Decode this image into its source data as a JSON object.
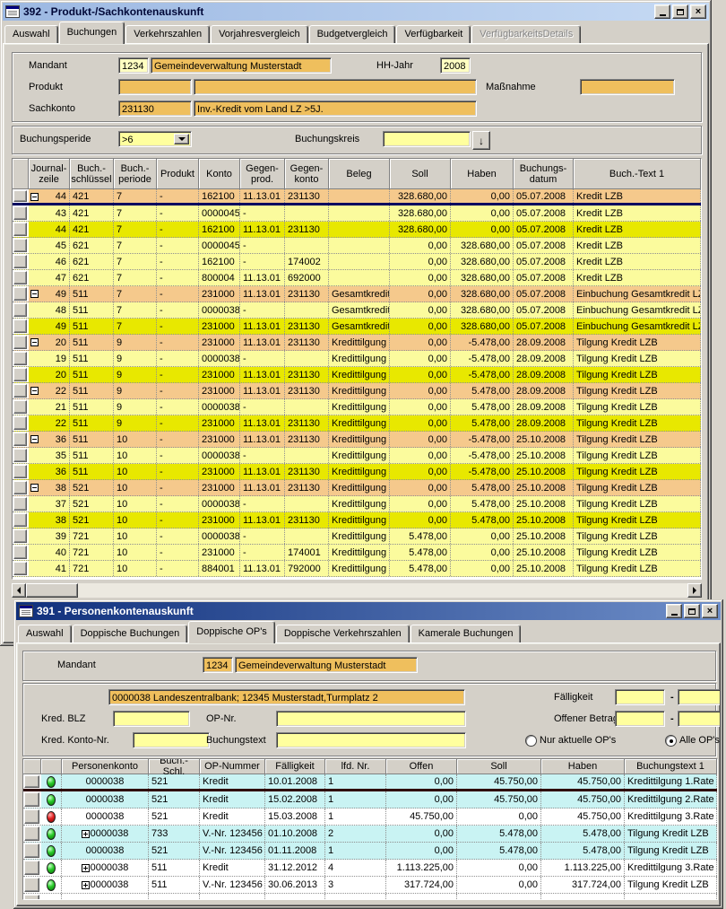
{
  "win392": {
    "title": "392 - Produkt-/Sachkontenauskunft",
    "tabs": [
      "Auswahl",
      "Buchungen",
      "Verkehrszahlen",
      "Vorjahresvergleich",
      "Budgetvergleich",
      "Verfügbarkeit",
      "VerfügbarkeitsDetails"
    ],
    "active_tab": "Buchungen",
    "disabled_tabs": [
      "VerfügbarkeitsDetails"
    ],
    "window_buttons": [
      "minimize",
      "maximize",
      "close"
    ],
    "form": {
      "mandant_label": "Mandant",
      "mandant": "1234",
      "mandant_name": "Gemeindeverwaltung Musterstadt",
      "hhjahr_label": "HH-Jahr",
      "hhjahr": "2008",
      "produkt_label": "Produkt",
      "produkt": "",
      "produkt_name": "",
      "massnahme_label": "Maßnahme",
      "massnahme": "",
      "sachkonto_label": "Sachkonto",
      "sachkonto": "231130",
      "sachkonto_name": "Inv.-Kredit vom Land LZ >5J.",
      "periode_label": "Buchungsperide",
      "periode": ">6",
      "kreis_label": "Buchungskreis",
      "kreis": ""
    },
    "grid": {
      "headers": [
        "Journal-\nzeile",
        "Buch.-\nschlüssel",
        "Buch.-\nperiode",
        "Produkt",
        "Konto",
        "Gegen-\nprod.",
        "Gegen-\nkonto",
        "Beleg",
        "Soll",
        "Haben",
        "Buchungs-\ndatum",
        "Buch.-Text 1"
      ],
      "rows": [
        {
          "i": "-",
          "s": "o",
          "sep": 1,
          "c": [
            "44",
            "421",
            "7",
            "-",
            "162100",
            "11.13.01",
            "231130",
            "",
            "328.680,00",
            "0,00",
            "05.07.2008",
            "Kredit LZB"
          ]
        },
        {
          "i": "",
          "s": "y",
          "c": [
            "43",
            "421",
            "7",
            "-",
            "0000045",
            "-",
            "",
            "",
            "328.680,00",
            "0,00",
            "05.07.2008",
            "Kredit LZB"
          ]
        },
        {
          "i": "",
          "s": "sel",
          "c": [
            "44",
            "421",
            "7",
            "-",
            "162100",
            "11.13.01",
            "231130",
            "",
            "328.680,00",
            "0,00",
            "05.07.2008",
            "Kredit LZB"
          ]
        },
        {
          "i": "",
          "s": "y",
          "c": [
            "45",
            "621",
            "7",
            "-",
            "0000045",
            "-",
            "",
            "",
            "0,00",
            "328.680,00",
            "05.07.2008",
            "Kredit LZB"
          ]
        },
        {
          "i": "",
          "s": "y",
          "c": [
            "46",
            "621",
            "7",
            "-",
            "162100",
            "-",
            "174002",
            "",
            "0,00",
            "328.680,00",
            "05.07.2008",
            "Kredit LZB"
          ]
        },
        {
          "i": "",
          "s": "y",
          "c": [
            "47",
            "621",
            "7",
            "-",
            "800004",
            "11.13.01",
            "692000",
            "",
            "0,00",
            "328.680,00",
            "05.07.2008",
            "Kredit LZB"
          ]
        },
        {
          "i": "-",
          "s": "o",
          "c": [
            "49",
            "511",
            "7",
            "-",
            "231000",
            "11.13.01",
            "231130",
            "Gesamtkredit",
            "0,00",
            "328.680,00",
            "05.07.2008",
            "Einbuchung Gesamtkredit LZB"
          ]
        },
        {
          "i": "",
          "s": "y",
          "c": [
            "48",
            "511",
            "7",
            "-",
            "0000038",
            "-",
            "",
            "Gesamtkredit",
            "0,00",
            "328.680,00",
            "05.07.2008",
            "Einbuchung Gesamtkredit LZB"
          ]
        },
        {
          "i": "",
          "s": "sel",
          "c": [
            "49",
            "511",
            "7",
            "-",
            "231000",
            "11.13.01",
            "231130",
            "Gesamtkredit",
            "0,00",
            "328.680,00",
            "05.07.2008",
            "Einbuchung Gesamtkredit LZB"
          ]
        },
        {
          "i": "-",
          "s": "o",
          "c": [
            "20",
            "511",
            "9",
            "-",
            "231000",
            "11.13.01",
            "231130",
            "Kredittilgung",
            "0,00",
            "-5.478,00",
            "28.09.2008",
            "Tilgung Kredit LZB"
          ]
        },
        {
          "i": "",
          "s": "y",
          "c": [
            "19",
            "511",
            "9",
            "-",
            "0000038",
            "-",
            "",
            "Kredittilgung",
            "0,00",
            "-5.478,00",
            "28.09.2008",
            "Tilgung Kredit LZB"
          ]
        },
        {
          "i": "",
          "s": "sel",
          "c": [
            "20",
            "511",
            "9",
            "-",
            "231000",
            "11.13.01",
            "231130",
            "Kredittilgung",
            "0,00",
            "-5.478,00",
            "28.09.2008",
            "Tilgung Kredit LZB"
          ]
        },
        {
          "i": "-",
          "s": "o",
          "c": [
            "22",
            "511",
            "9",
            "-",
            "231000",
            "11.13.01",
            "231130",
            "Kredittilgung",
            "0,00",
            "5.478,00",
            "28.09.2008",
            "Tilgung Kredit LZB"
          ]
        },
        {
          "i": "",
          "s": "y",
          "c": [
            "21",
            "511",
            "9",
            "-",
            "0000038",
            "-",
            "",
            "Kredittilgung",
            "0,00",
            "5.478,00",
            "28.09.2008",
            "Tilgung Kredit LZB"
          ]
        },
        {
          "i": "",
          "s": "sel",
          "c": [
            "22",
            "511",
            "9",
            "-",
            "231000",
            "11.13.01",
            "231130",
            "Kredittilgung",
            "0,00",
            "5.478,00",
            "28.09.2008",
            "Tilgung Kredit LZB"
          ]
        },
        {
          "i": "-",
          "s": "o",
          "c": [
            "36",
            "511",
            "10",
            "-",
            "231000",
            "11.13.01",
            "231130",
            "Kredittilgung",
            "0,00",
            "-5.478,00",
            "25.10.2008",
            "Tilgung Kredit LZB"
          ]
        },
        {
          "i": "",
          "s": "y",
          "c": [
            "35",
            "511",
            "10",
            "-",
            "0000038",
            "-",
            "",
            "Kredittilgung",
            "0,00",
            "-5.478,00",
            "25.10.2008",
            "Tilgung Kredit LZB"
          ]
        },
        {
          "i": "",
          "s": "sel",
          "c": [
            "36",
            "511",
            "10",
            "-",
            "231000",
            "11.13.01",
            "231130",
            "Kredittilgung",
            "0,00",
            "-5.478,00",
            "25.10.2008",
            "Tilgung Kredit LZB"
          ]
        },
        {
          "i": "-",
          "s": "o",
          "c": [
            "38",
            "521",
            "10",
            "-",
            "231000",
            "11.13.01",
            "231130",
            "Kredittilgung",
            "0,00",
            "5.478,00",
            "25.10.2008",
            "Tilgung Kredit LZB"
          ]
        },
        {
          "i": "",
          "s": "y",
          "c": [
            "37",
            "521",
            "10",
            "-",
            "0000038",
            "-",
            "",
            "Kredittilgung",
            "0,00",
            "5.478,00",
            "25.10.2008",
            "Tilgung Kredit LZB"
          ]
        },
        {
          "i": "",
          "s": "sel",
          "c": [
            "38",
            "521",
            "10",
            "-",
            "231000",
            "11.13.01",
            "231130",
            "Kredittilgung",
            "0,00",
            "5.478,00",
            "25.10.2008",
            "Tilgung Kredit LZB"
          ]
        },
        {
          "i": "",
          "s": "y",
          "c": [
            "39",
            "721",
            "10",
            "-",
            "0000038",
            "-",
            "",
            "Kredittilgung",
            "5.478,00",
            "0,00",
            "25.10.2008",
            "Tilgung Kredit LZB"
          ]
        },
        {
          "i": "",
          "s": "y",
          "c": [
            "40",
            "721",
            "10",
            "-",
            "231000",
            "-",
            "174001",
            "Kredittilgung",
            "5.478,00",
            "0,00",
            "25.10.2008",
            "Tilgung Kredit LZB"
          ]
        },
        {
          "i": "",
          "s": "y",
          "c": [
            "41",
            "721",
            "10",
            "-",
            "884001",
            "11.13.01",
            "792000",
            "Kredittilgung",
            "5.478,00",
            "0,00",
            "25.10.2008",
            "Tilgung Kredit LZB"
          ]
        }
      ]
    }
  },
  "win391": {
    "title": "391 - Personenkontenauskunft",
    "tabs": [
      "Auswahl",
      "Doppische Buchungen",
      "Doppische OP's",
      "Doppische Verkehrszahlen",
      "Kamerale Buchungen"
    ],
    "active_tab": "Doppische OP's",
    "disabled_tabs": [],
    "window_buttons": [
      "minimize",
      "maximize",
      "close"
    ],
    "form": {
      "mandant_label": "Mandant",
      "mandant": "1234",
      "mandant_name": "Gemeindeverwaltung Musterstadt",
      "kreditor": "0000038 Landeszentralbank; 12345 Musterstadt,Turmplatz 2",
      "blz_label": "Kred. BLZ",
      "blz": "",
      "kontonr_label": "Kred. Konto-Nr.",
      "kontonr": "",
      "opnr_label": "OP-Nr.",
      "opnr": "",
      "buchungstext_label": "Buchungstext",
      "buchungstext": "",
      "faelligkeit_label": "Fälligkeit",
      "faelligkeit_von": "",
      "faelligkeit_bis": "",
      "offen_label": "Offener Betrag",
      "offen_von": "",
      "offen_bis": "",
      "range_dash": "-",
      "radio_aktuelle": "Nur aktuelle OP's",
      "radio_alle": "Alle OP's",
      "radio_selected": "Alle OP's"
    },
    "grid": {
      "headers": [
        "Personenkonto",
        "Buch.-Schl.",
        "OP-Nummer",
        "Fälligkeit",
        "lfd. Nr.",
        "Offen",
        "Soll",
        "Haben",
        "Buchungstext 1"
      ],
      "rows": [
        {
          "light": "g",
          "i": "",
          "s": "c",
          "sep": 1,
          "c": [
            "0000038",
            "521",
            "Kredit",
            "10.01.2008",
            "1",
            "0,00",
            "45.750,00",
            "45.750,00",
            "Kredittilgung 1.Rate"
          ]
        },
        {
          "light": "g",
          "i": "",
          "s": "c",
          "c": [
            "0000038",
            "521",
            "Kredit",
            "15.02.2008",
            "1",
            "0,00",
            "45.750,00",
            "45.750,00",
            "Kredittilgung 2.Rate"
          ]
        },
        {
          "light": "r",
          "i": "",
          "s": "w",
          "c": [
            "0000038",
            "521",
            "Kredit",
            "15.03.2008",
            "1",
            "45.750,00",
            "0,00",
            "45.750,00",
            "Kredittilgung 3.Rate"
          ]
        },
        {
          "light": "g",
          "i": "+",
          "s": "c",
          "c": [
            "0000038",
            "733",
            "V.-Nr. 123456",
            "01.10.2008",
            "2",
            "0,00",
            "5.478,00",
            "5.478,00",
            "Tilgung Kredit LZB"
          ]
        },
        {
          "light": "g",
          "i": "",
          "s": "c",
          "c": [
            "0000038",
            "521",
            "V.-Nr. 123456",
            "01.11.2008",
            "1",
            "0,00",
            "5.478,00",
            "5.478,00",
            "Tilgung Kredit LZB"
          ]
        },
        {
          "light": "g",
          "i": "+",
          "s": "w",
          "c": [
            "0000038",
            "511",
            "Kredit",
            "31.12.2012",
            "4",
            "1.113.225,00",
            "0,00",
            "1.113.225,00",
            "Kredittilgung 3.Rate"
          ]
        },
        {
          "light": "g",
          "i": "+",
          "s": "w",
          "c": [
            "0000038",
            "511",
            "V.-Nr. 123456",
            "30.06.2013",
            "3",
            "317.724,00",
            "0,00",
            "317.724,00",
            "Tilgung Kredit LZB"
          ]
        },
        {
          "light": "",
          "i": "",
          "s": "w",
          "c": [
            "",
            "",
            "",
            "",
            "",
            "",
            "",
            "",
            ""
          ]
        }
      ]
    }
  }
}
